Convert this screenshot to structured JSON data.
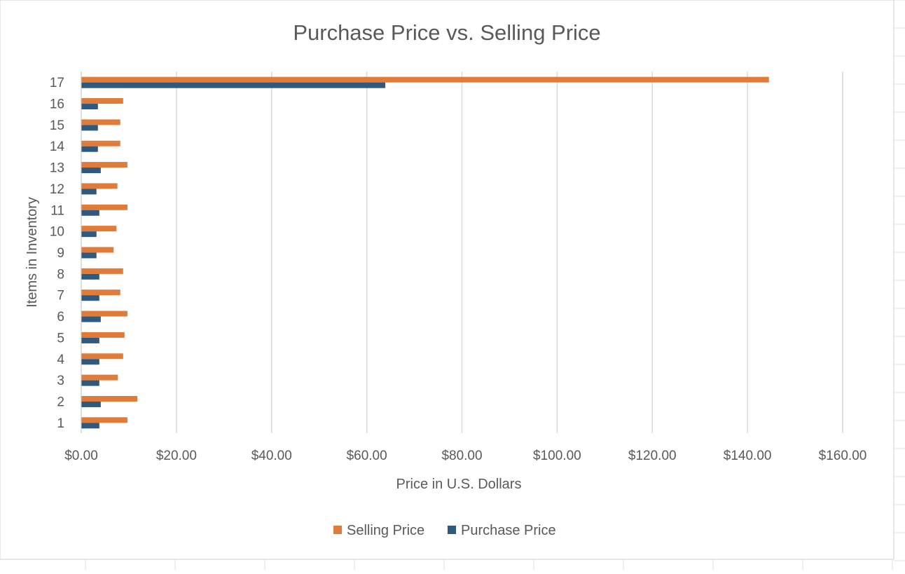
{
  "colors": {
    "selling": "#E07B39",
    "purchase": "#2F5A7E",
    "grid": "#D9D9D9",
    "axis": "#BFBFBF",
    "text": "#595959",
    "sheet_grid": "#E2E2E2"
  },
  "chart_data": {
    "type": "bar",
    "orientation": "horizontal",
    "title": "Purchase Price vs. Selling Price",
    "xlabel": "Price in U.S. Dollars",
    "ylabel": "Items in Inventory",
    "xlim": [
      0,
      160
    ],
    "x_ticks": [
      0,
      20,
      40,
      60,
      80,
      100,
      120,
      140,
      160
    ],
    "x_tick_labels": [
      "$0.00",
      "$20.00",
      "$40.00",
      "$60.00",
      "$80.00",
      "$100.00",
      "$120.00",
      "$140.00",
      "$160.00"
    ],
    "categories": [
      "1",
      "2",
      "3",
      "4",
      "5",
      "6",
      "7",
      "8",
      "9",
      "10",
      "11",
      "12",
      "13",
      "14",
      "15",
      "16",
      "17"
    ],
    "series": [
      {
        "name": "Selling Price",
        "values": [
          9.7,
          11.8,
          7.7,
          8.8,
          9.1,
          9.7,
          8.2,
          8.8,
          6.8,
          7.4,
          9.7,
          7.6,
          9.7,
          8.2,
          8.2,
          8.8,
          144.5
        ]
      },
      {
        "name": "Purchase Price",
        "values": [
          3.8,
          4.1,
          3.8,
          3.8,
          3.8,
          4.1,
          3.8,
          3.8,
          3.2,
          3.2,
          3.8,
          3.2,
          4.1,
          3.5,
          3.5,
          3.5,
          63.9
        ]
      }
    ],
    "grid": true,
    "legend": "bottom"
  }
}
